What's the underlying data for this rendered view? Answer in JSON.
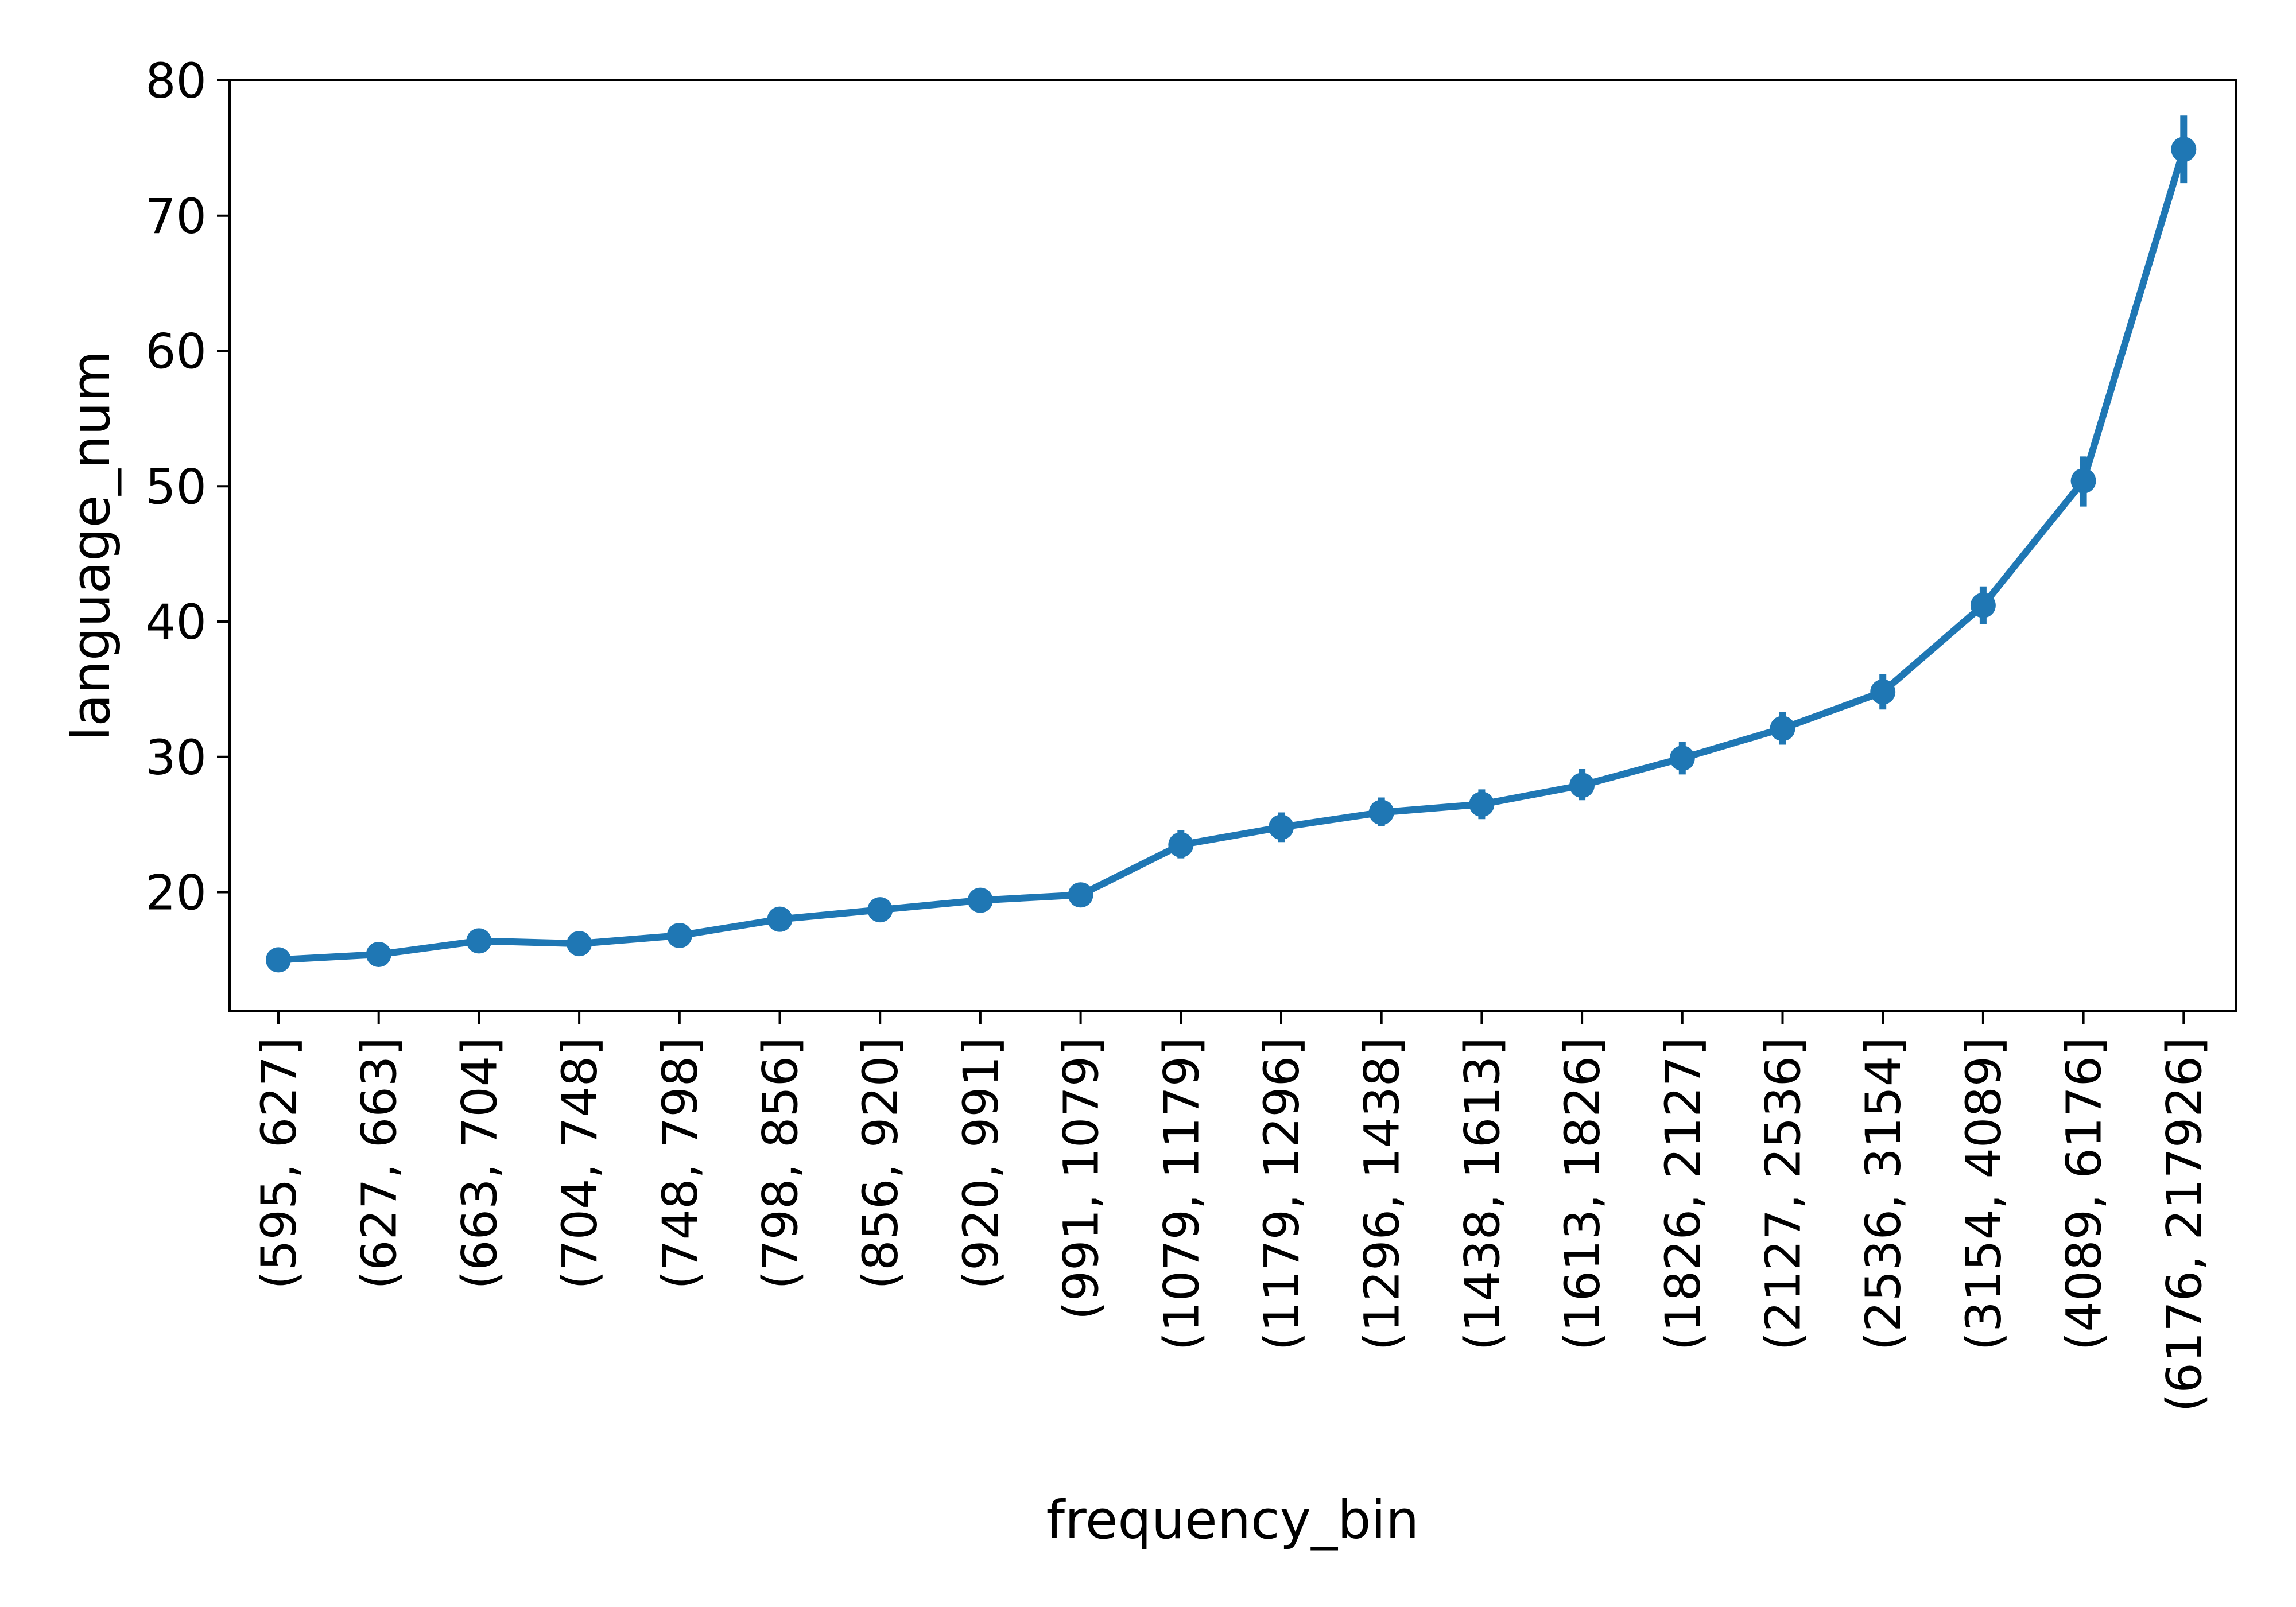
{
  "chart_data": {
    "type": "line",
    "title": "",
    "xlabel": "frequency_bin",
    "ylabel": "language_num",
    "ylim": [
      11.2,
      80.0
    ],
    "yticks": [
      20,
      30,
      40,
      50,
      60,
      70,
      80
    ],
    "grid": false,
    "legend": "none",
    "colors": {
      "series": "#1f77b4",
      "axis": "#000000"
    },
    "categories": [
      "(595, 627]",
      "(627, 663]",
      "(663, 704]",
      "(704, 748]",
      "(748, 798]",
      "(798, 856]",
      "(856, 920]",
      "(920, 991]",
      "(991, 1079]",
      "(1079, 1179]",
      "(1179, 1296]",
      "(1296, 1438]",
      "(1438, 1613]",
      "(1613, 1826]",
      "(1826, 2127]",
      "(2127, 2536]",
      "(2536, 3154]",
      "(3154, 4089]",
      "(4089, 6176]",
      "(6176, 217926]"
    ],
    "series": [
      {
        "values": [
          15.0,
          15.4,
          16.4,
          16.2,
          16.8,
          18.0,
          18.7,
          19.4,
          19.8,
          23.5,
          24.8,
          25.9,
          26.5,
          27.9,
          29.9,
          32.1,
          34.8,
          41.2,
          50.4,
          74.9
        ],
        "ci_low": [
          14.6,
          15.0,
          15.9,
          15.7,
          16.3,
          17.4,
          18.1,
          18.8,
          19.0,
          22.5,
          23.7,
          24.9,
          25.4,
          26.8,
          28.7,
          30.9,
          33.5,
          39.8,
          48.5,
          72.4
        ],
        "ci_high": [
          15.4,
          15.9,
          16.9,
          16.7,
          17.3,
          18.5,
          19.3,
          20.0,
          20.6,
          24.6,
          25.9,
          27.0,
          27.6,
          29.1,
          31.1,
          33.3,
          36.1,
          42.6,
          52.2,
          77.4
        ]
      }
    ]
  }
}
